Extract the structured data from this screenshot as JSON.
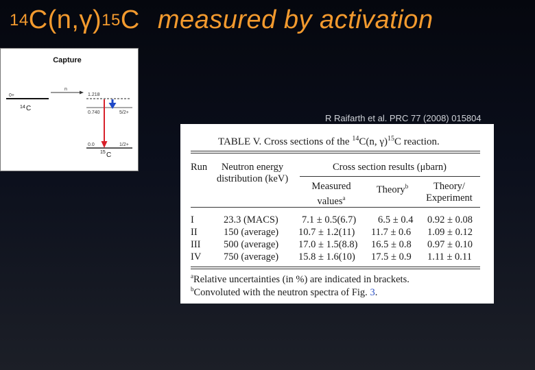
{
  "title": {
    "isotope_a_mass": "14",
    "isotope_a_reaction": "C(n,γ)",
    "isotope_b_mass": "15",
    "isotope_b": "C",
    "rest": "measured by activation"
  },
  "level_scheme": {
    "title": "Capture",
    "left_spin": "0+",
    "neutron_label": "n",
    "threshold_energy": "1.218",
    "nucleus_a_mass": "14",
    "nucleus_a": "C",
    "level_mid_energy": "0.740",
    "level_mid_spin": "5/2+",
    "ground_energy": "0.0",
    "ground_spin": "1/2+",
    "nucleus_b_mass": "15",
    "nucleus_b": "C",
    "colors": {
      "red_arrow": "#d8202a",
      "blue_arrow": "#1f49c8"
    }
  },
  "reference": "R Raifarth et al. PRC 77 (2008) 015804",
  "table": {
    "caption_prefix": "TABLE V.  Cross sections of the ",
    "caption_mass_a": "14",
    "caption_reaction": "C(n, γ)",
    "caption_mass_b": "15",
    "caption_suffix": "C reaction.",
    "headers": {
      "run": "Run",
      "neutron_line1": "Neutron energy",
      "neutron_line2": "distribution (keV)",
      "cross_section": "Cross section results (μbarn)",
      "measured_line1": "Measured",
      "measured_line2": "values",
      "measured_mark": "a",
      "theory": "Theory",
      "theory_mark": "b",
      "ratio_line1": "Theory/",
      "ratio_line2": "Experiment"
    },
    "rows": [
      {
        "run": "I",
        "distribution": "23.3 (MACS)",
        "measured": "7.1 ± 0.5(6.7)",
        "theory": "6.5 ± 0.4",
        "ratio": "0.92 ± 0.08"
      },
      {
        "run": "II",
        "distribution": "150 (average)",
        "measured": "10.7 ± 1.2(11)",
        "theory": "11.7 ± 0.6",
        "ratio": "1.09 ± 0.12"
      },
      {
        "run": "III",
        "distribution": "500 (average)",
        "measured": "17.0 ± 1.5(8.8)",
        "theory": "16.5 ± 0.8",
        "ratio": "0.97 ± 0.10"
      },
      {
        "run": "IV",
        "distribution": "750 (average)",
        "measured": "15.8 ± 1.6(10)",
        "theory": "17.5 ± 0.9",
        "ratio": "1.11 ± 0.11"
      }
    ],
    "footnote_a_mark": "a",
    "footnote_a": "Relative uncertainties (in %) are indicated in brackets.",
    "footnote_b_mark": "b",
    "footnote_b_text": "Convoluted with the neutron spectra of Fig. ",
    "footnote_b_link": "3",
    "footnote_b_end": "."
  },
  "colors": {
    "title": "#f39a2e",
    "reference": "#cfd2d8"
  }
}
